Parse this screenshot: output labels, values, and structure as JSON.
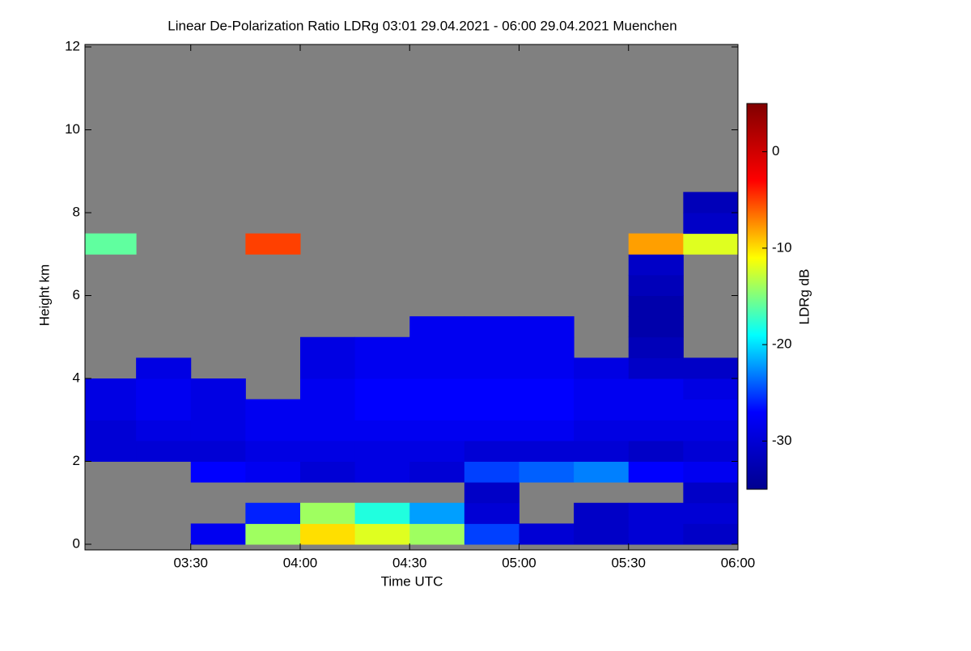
{
  "chart_data": {
    "type": "heatmap",
    "title": "Linear De-Polarization Ratio LDRg   03:01 29.04.2021 - 06:00 29.04.2021 Muenchen",
    "x_label": "Time UTC",
    "y_label": "Height km",
    "colorbar_label": "LDRg dB",
    "xlim": [
      181,
      360
    ],
    "xticks": [
      {
        "value": 210,
        "label": "03:30"
      },
      {
        "value": 240,
        "label": "04:00"
      },
      {
        "value": 270,
        "label": "04:30"
      },
      {
        "value": 300,
        "label": "05:00"
      },
      {
        "value": 330,
        "label": "05:30"
      },
      {
        "value": 360,
        "label": "06:00"
      }
    ],
    "ylim": [
      0,
      12
    ],
    "yticks": [
      0,
      2,
      4,
      6,
      8,
      10,
      12
    ],
    "clim": [
      -35,
      5
    ],
    "cticks": [
      0,
      -10,
      -20,
      -30
    ],
    "colormap": [
      "#00008f",
      "#0000ff",
      "#00ffff",
      "#ffff00",
      "#ff0000",
      "#800000"
    ],
    "missing_color": "#808080",
    "x_edges": [
      181,
      195,
      210,
      225,
      240,
      255,
      270,
      285,
      300,
      315,
      330,
      345,
      360
    ],
    "y_edges": [
      0,
      0.5,
      1,
      1.5,
      2,
      2.5,
      3,
      3.5,
      4,
      4.5,
      5,
      5.5,
      6,
      6.5,
      7,
      7.5,
      8,
      8.5
    ],
    "z": [
      [
        null,
        null,
        -28,
        -14,
        -10,
        -12,
        -14,
        -25,
        -30,
        -31,
        -30,
        -31
      ],
      [
        null,
        null,
        null,
        -26,
        -14,
        -18,
        -22,
        -30,
        null,
        -31,
        -30,
        -30
      ],
      [
        null,
        null,
        null,
        null,
        null,
        null,
        null,
        -31,
        null,
        null,
        null,
        -31
      ],
      [
        null,
        null,
        -27,
        -28,
        -30,
        -29,
        -30,
        -25,
        -24,
        -23,
        -27,
        -28
      ],
      [
        -30,
        -30,
        -30,
        -29,
        -29,
        -29,
        -29,
        -30,
        -30,
        -30,
        -31,
        -30
      ],
      [
        -30,
        -29,
        -29,
        -28,
        -28,
        -28,
        -28,
        -28,
        -28,
        -29,
        -29,
        -29
      ],
      [
        -29,
        -28,
        -29,
        -28,
        -28,
        -27,
        -27,
        -27,
        -27,
        -28,
        -28,
        -28
      ],
      [
        -29,
        -28,
        -29,
        null,
        -28,
        -27,
        -27,
        -27,
        -27,
        -28,
        -28,
        -29
      ],
      [
        null,
        -29,
        null,
        null,
        -29,
        -28,
        -28,
        -28,
        -28,
        -29,
        -31,
        -31
      ],
      [
        null,
        null,
        null,
        null,
        -29,
        -28,
        -28,
        -28,
        -28,
        null,
        -32,
        null
      ],
      [
        null,
        null,
        null,
        null,
        null,
        null,
        -28,
        -28,
        -28,
        null,
        -33,
        null
      ],
      [
        null,
        null,
        null,
        null,
        null,
        null,
        null,
        null,
        null,
        null,
        -33,
        null
      ],
      [
        null,
        null,
        null,
        null,
        null,
        null,
        null,
        null,
        null,
        null,
        -32,
        null
      ],
      [
        null,
        null,
        null,
        null,
        null,
        null,
        null,
        null,
        null,
        null,
        -31,
        null
      ],
      [
        -16,
        null,
        null,
        -5,
        null,
        null,
        null,
        null,
        null,
        null,
        -8,
        -12
      ],
      [
        null,
        null,
        null,
        null,
        null,
        null,
        null,
        null,
        null,
        null,
        null,
        -31
      ],
      [
        null,
        null,
        null,
        null,
        null,
        null,
        null,
        null,
        null,
        null,
        null,
        -32
      ]
    ]
  }
}
